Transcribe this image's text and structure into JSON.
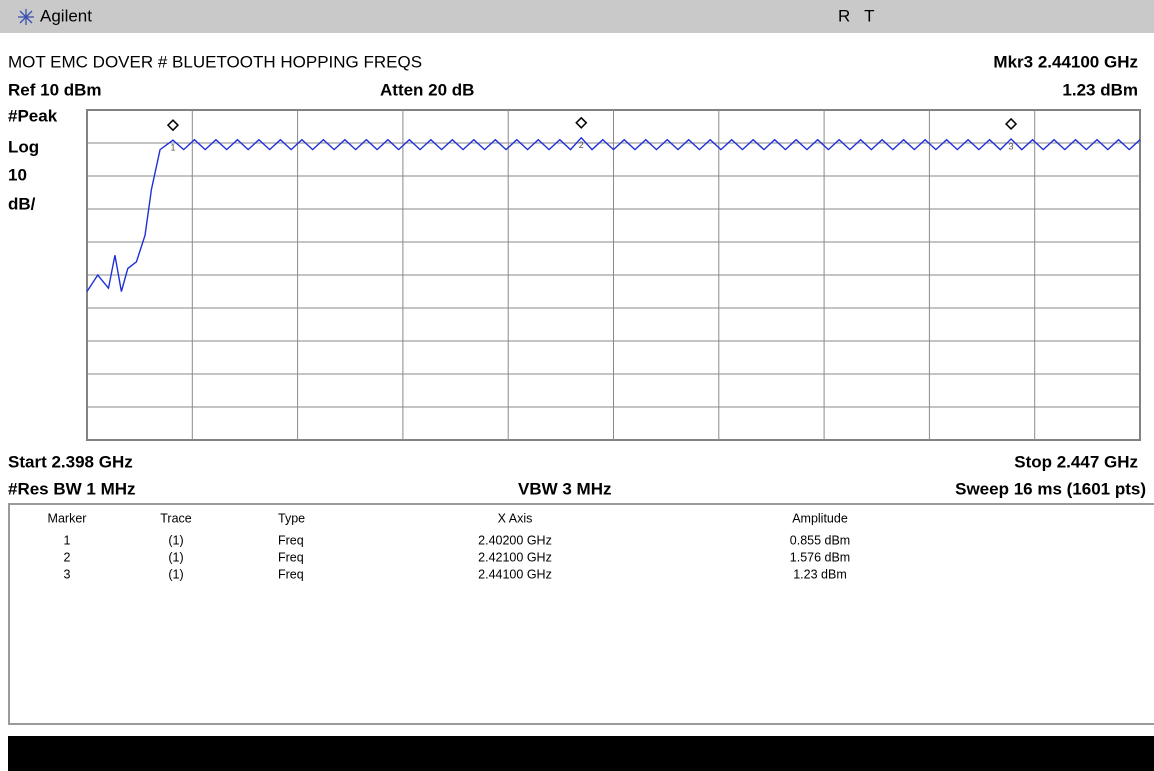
{
  "header": {
    "brand": "Agilent",
    "status": "R   T"
  },
  "info": {
    "title": "MOT EMC DOVER # BLUETOOTH HOPPING FREQS",
    "marker_readout": "Mkr3  2.44100 GHz",
    "marker_amplitude": "1.23 dBm",
    "ref": "Ref 10 dBm",
    "atten": "Atten 20 dB",
    "detector": "#Peak",
    "scale_type": "Log",
    "scale_value": "10",
    "scale_unit": "dB/",
    "start": "Start 2.398 GHz",
    "stop": "Stop 2.447 GHz",
    "rbw": "#Res BW 1 MHz",
    "vbw": "VBW 3 MHz",
    "sweep": "Sweep 16 ms (1601 pts)"
  },
  "chart_data": {
    "type": "line",
    "xlim": [
      2.398,
      2.447
    ],
    "ylim": [
      -90,
      10
    ],
    "xticks": [
      2.398,
      2.4029,
      2.4078,
      2.4127,
      2.4176,
      2.4225,
      2.4274,
      2.4323,
      2.4372,
      2.4421,
      2.447
    ],
    "yticks": [
      -90,
      -80,
      -70,
      -60,
      -50,
      -40,
      -30,
      -20,
      -10,
      0,
      10
    ],
    "grid": true,
    "color": "#1f2fd8",
    "x": [
      2.398,
      2.3985,
      2.399,
      2.3993,
      2.3996,
      2.3999,
      2.4003,
      2.4007,
      2.401,
      2.4014,
      2.402,
      2.4025,
      2.403,
      2.4035,
      2.404,
      2.4045,
      2.405,
      2.4055,
      2.406,
      2.4065,
      2.407,
      2.4075,
      2.408,
      2.4085,
      2.409,
      2.4095,
      2.41,
      2.4105,
      2.411,
      2.4115,
      2.412,
      2.4125,
      2.413,
      2.4135,
      2.414,
      2.4145,
      2.415,
      2.4155,
      2.416,
      2.4165,
      2.417,
      2.4175,
      2.418,
      2.4185,
      2.419,
      2.4195,
      2.42,
      2.4205,
      2.421,
      2.4215,
      2.422,
      2.4225,
      2.423,
      2.4235,
      2.424,
      2.4245,
      2.425,
      2.4255,
      2.426,
      2.4265,
      2.427,
      2.4275,
      2.428,
      2.4285,
      2.429,
      2.4295,
      2.43,
      2.4305,
      2.431,
      2.4315,
      2.432,
      2.4325,
      2.433,
      2.4335,
      2.434,
      2.4345,
      2.435,
      2.4355,
      2.436,
      2.4365,
      2.437,
      2.4375,
      2.438,
      2.4385,
      2.439,
      2.4395,
      2.44,
      2.4405,
      2.441,
      2.4415,
      2.442,
      2.4425,
      2.443,
      2.4435,
      2.444,
      2.4445,
      2.445,
      2.4455,
      2.446,
      2.4465,
      2.447
    ],
    "values": [
      -45,
      -40,
      -44,
      -34,
      -45,
      -38,
      -36,
      -28,
      -14,
      -2,
      0.855,
      -2,
      1,
      -2,
      1,
      -2,
      1,
      -2,
      1,
      -2,
      1,
      -2,
      1,
      -2,
      1,
      -2,
      1,
      -2,
      1,
      -2,
      1,
      -2,
      1,
      -2,
      1,
      -2,
      1,
      -2,
      1,
      -2,
      1,
      -2,
      1,
      -2,
      1,
      -2,
      1,
      -2,
      1.576,
      -2,
      1,
      -2,
      1,
      -2,
      1,
      -2,
      1,
      -2,
      1,
      -2,
      1,
      -2,
      1,
      -2,
      1,
      -2,
      1,
      -2,
      1,
      -2,
      1,
      -2,
      1,
      -2,
      1,
      -2,
      1,
      -2,
      1,
      -2,
      1,
      -2,
      1,
      -2,
      1,
      -2,
      1,
      -2,
      1.23,
      -2,
      1,
      -2,
      1,
      -2,
      1,
      -2,
      1,
      -2,
      1,
      -2,
      1
    ],
    "markers": [
      {
        "label": "1",
        "x": 2.402,
        "amplitude": 0.855
      },
      {
        "label": "2",
        "x": 2.421,
        "amplitude": 1.576
      },
      {
        "label": "3",
        "x": 2.441,
        "amplitude": 1.23
      }
    ]
  },
  "table": {
    "columns": [
      "Marker",
      "Trace",
      "Type",
      "X Axis",
      "Amplitude"
    ],
    "rows": [
      [
        "1",
        "(1)",
        "Freq",
        "2.40200 GHz",
        "0.855 dBm"
      ],
      [
        "2",
        "(1)",
        "Freq",
        "2.42100 GHz",
        "1.576 dBm"
      ],
      [
        "3",
        "(1)",
        "Freq",
        "2.44100 GHz",
        "1.23 dBm"
      ]
    ]
  }
}
